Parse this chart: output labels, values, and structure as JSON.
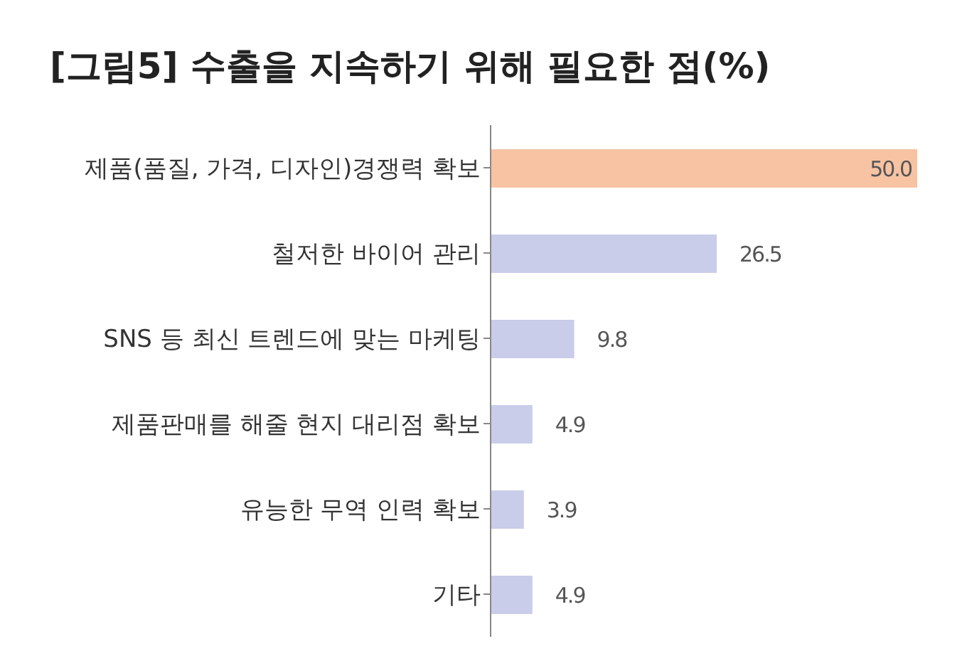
{
  "chart_data": {
    "type": "bar",
    "orientation": "horizontal",
    "title": "[그림5] 수출을 지속하기 위해 필요한 점(%)",
    "categories": [
      "제품(품질, 가격, 디자인)경쟁력 확보",
      "철저한 바이어 관리",
      "SNS 등 최신 트렌드에 맞는 마케팅",
      "제품판매를 해줄 현지 대리점 확보",
      "유능한 무역 인력 확보",
      "기타"
    ],
    "values": [
      50.0,
      26.5,
      9.8,
      4.9,
      3.9,
      4.9
    ],
    "value_labels": [
      "50.0",
      "26.5",
      "9.8",
      "4.9",
      "3.9",
      "4.9"
    ],
    "colors": [
      "#f7c3a3",
      "#c9cde9",
      "#c9cde9",
      "#c9cde9",
      "#c9cde9",
      "#c9cde9"
    ],
    "grid": false,
    "legend": false
  }
}
